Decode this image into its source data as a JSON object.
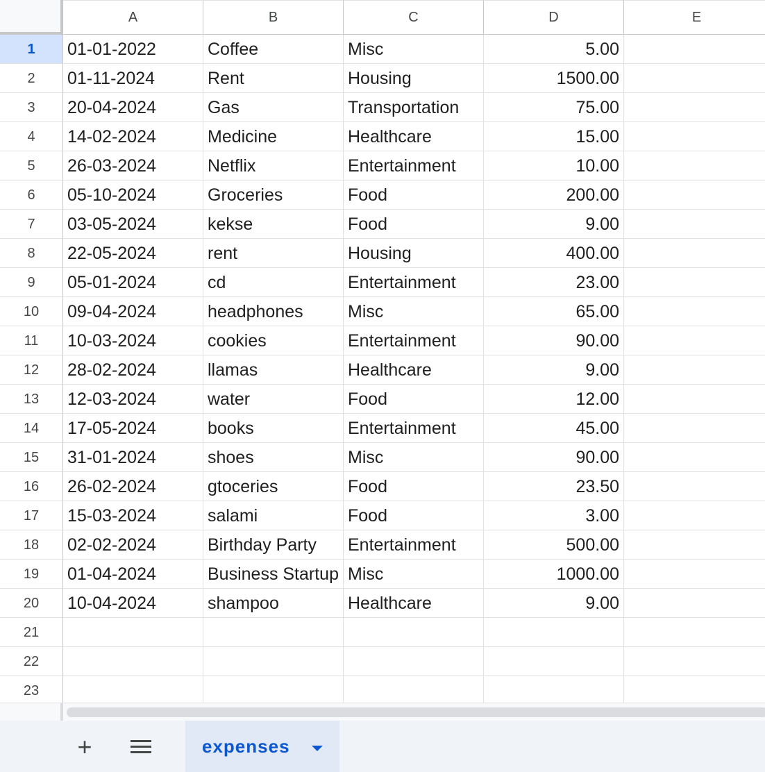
{
  "columns": [
    "A",
    "B",
    "C",
    "D",
    "E"
  ],
  "rows": [
    {
      "n": "1",
      "a": "01-01-2022",
      "b": "Coffee",
      "c": "Misc",
      "d": "5.00"
    },
    {
      "n": "2",
      "a": "01-11-2024",
      "b": "Rent",
      "c": "Housing",
      "d": "1500.00"
    },
    {
      "n": "3",
      "a": "20-04-2024",
      "b": "Gas",
      "c": "Transportation",
      "d": "75.00"
    },
    {
      "n": "4",
      "a": "14-02-2024",
      "b": "Medicine",
      "c": "Healthcare",
      "d": "15.00"
    },
    {
      "n": "5",
      "a": "26-03-2024",
      "b": "Netflix",
      "c": "Entertainment",
      "d": "10.00"
    },
    {
      "n": "6",
      "a": "05-10-2024",
      "b": "Groceries",
      "c": "Food",
      "d": "200.00"
    },
    {
      "n": "7",
      "a": "03-05-2024",
      "b": "kekse",
      "c": "Food",
      "d": "9.00"
    },
    {
      "n": "8",
      "a": "22-05-2024",
      "b": "rent",
      "c": "Housing",
      "d": "400.00"
    },
    {
      "n": "9",
      "a": "05-01-2024",
      "b": "cd",
      "c": "Entertainment",
      "d": "23.00"
    },
    {
      "n": "10",
      "a": "09-04-2024",
      "b": "headphones",
      "c": "Misc",
      "d": "65.00"
    },
    {
      "n": "11",
      "a": "10-03-2024",
      "b": "cookies",
      "c": "Entertainment",
      "d": "90.00"
    },
    {
      "n": "12",
      "a": "28-02-2024",
      "b": "llamas",
      "c": "Healthcare",
      "d": "9.00"
    },
    {
      "n": "13",
      "a": "12-03-2024",
      "b": "water",
      "c": "Food",
      "d": "12.00"
    },
    {
      "n": "14",
      "a": "17-05-2024",
      "b": "books",
      "c": "Entertainment",
      "d": "45.00"
    },
    {
      "n": "15",
      "a": "31-01-2024",
      "b": "shoes",
      "c": "Misc",
      "d": "90.00"
    },
    {
      "n": "16",
      "a": "26-02-2024",
      "b": "gtoceries",
      "c": "Food",
      "d": "23.50"
    },
    {
      "n": "17",
      "a": "15-03-2024",
      "b": "salami",
      "c": "Food",
      "d": "3.00"
    },
    {
      "n": "18",
      "a": "02-02-2024",
      "b": "Birthday Party",
      "c": "Entertainment",
      "d": "500.00"
    },
    {
      "n": "19",
      "a": "01-04-2024",
      "b": "Business Startup",
      "c": "Misc",
      "d": "1000.00"
    },
    {
      "n": "20",
      "a": "10-04-2024",
      "b": "shampoo",
      "c": "Healthcare",
      "d": "9.00"
    },
    {
      "n": "21",
      "a": "",
      "b": "",
      "c": "",
      "d": ""
    },
    {
      "n": "22",
      "a": "",
      "b": "",
      "c": "",
      "d": ""
    },
    {
      "n": "23",
      "a": "",
      "b": "",
      "c": "",
      "d": ""
    }
  ],
  "active_row": "1",
  "tabs": {
    "add_label": "+",
    "sheet_name": "expenses"
  }
}
